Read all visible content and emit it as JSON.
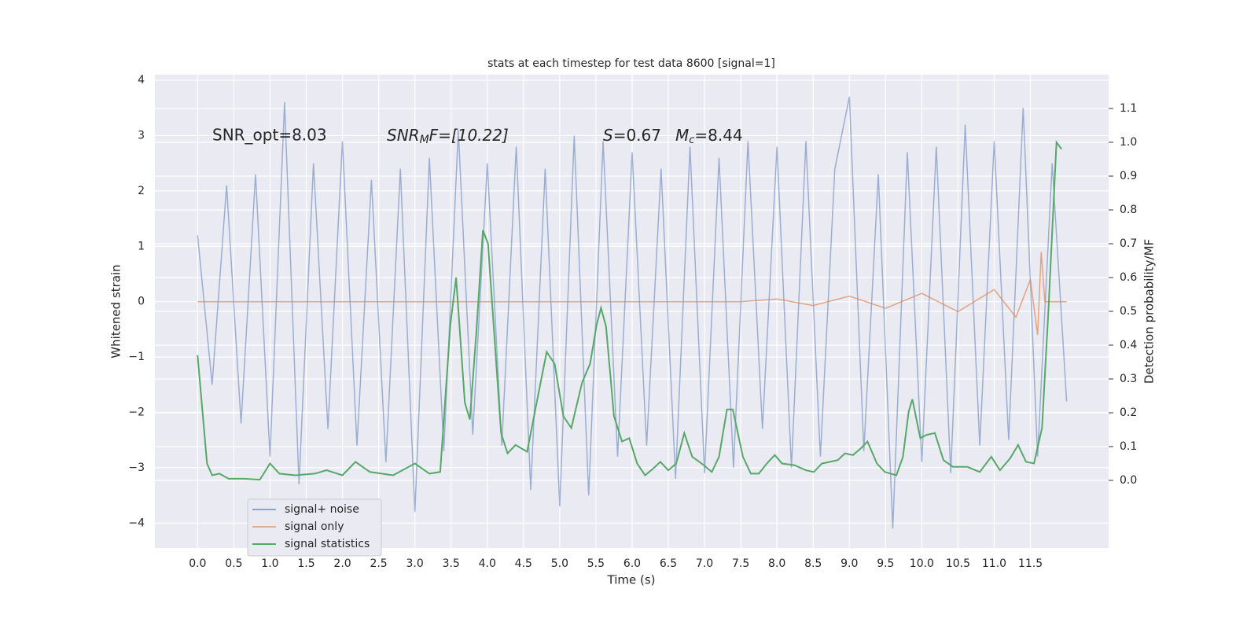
{
  "chart_data": {
    "type": "line",
    "title": "stats at each timestep for test data 8600 [signal=1]",
    "xlabel": "Time (s)",
    "ylabel": "Whitened strain",
    "y2label": "Detection probability/MF",
    "annotations": {
      "snr_opt": "SNR_opt=8.03",
      "snr_mf": [
        "SNR",
        "M",
        "F=[10.22]"
      ],
      "s": "S",
      "s_val": "=0.67",
      "mc": [
        "M",
        "c",
        "=8.44"
      ]
    },
    "xlim": [
      -0.59,
      12.58
    ],
    "ylim": [
      -4.45,
      4.1
    ],
    "y2lim": [
      -0.2,
      1.2
    ],
    "xticks": [
      {
        "value": 0,
        "label": "0.0"
      },
      0.5,
      {
        "value": 1,
        "label": "1.0"
      },
      1.5,
      {
        "value": 2,
        "label": "2.0"
      },
      2.5,
      {
        "value": 3,
        "label": "3.0"
      },
      3.5,
      {
        "value": 4,
        "label": "4.0"
      },
      4.5,
      {
        "value": 5,
        "label": "5.0"
      },
      5.5,
      {
        "value": 6,
        "label": "6.0"
      },
      6.5,
      {
        "value": 7,
        "label": "7.0"
      },
      7.5,
      {
        "value": 8,
        "label": "8.0"
      },
      8.5,
      {
        "value": 9,
        "label": "9.0"
      },
      9.5,
      {
        "value": 10,
        "label": "10.0"
      },
      10.5,
      {
        "value": 11,
        "label": "11.0"
      },
      11.5
    ],
    "yticks": [
      {
        "value": -4,
        "label": "−4"
      },
      {
        "value": -3,
        "label": "−3"
      },
      {
        "value": -2,
        "label": "−2"
      },
      {
        "value": -1,
        "label": "−1"
      },
      0,
      1,
      2,
      3,
      4
    ],
    "y2ticks": [
      {
        "value": 0,
        "label": "0.0"
      },
      0.1,
      0.2,
      0.3,
      0.4,
      0.5,
      0.6,
      0.7,
      0.8,
      0.9,
      {
        "value": 1,
        "label": "1.0"
      },
      1.1
    ],
    "grid": true,
    "legend": "lower left",
    "series": [
      {
        "name": "signal+ noise",
        "color": "#4c72b0",
        "axis": "y",
        "x": [
          0,
          0.2,
          0.4,
          0.6,
          0.8,
          1,
          1.2,
          1.4,
          1.6,
          1.8,
          2,
          2.2,
          2.4,
          2.6,
          2.8,
          3,
          3.2,
          3.4,
          3.6,
          3.8,
          4,
          4.2,
          4.4,
          4.6,
          4.8,
          5,
          5.2,
          5.4,
          5.6,
          5.8,
          6,
          6.2,
          6.4,
          6.6,
          6.8,
          7,
          7.2,
          7.4,
          7.6,
          7.8,
          8,
          8.2,
          8.4,
          8.6,
          8.8,
          9,
          9.2,
          9.4,
          9.6,
          9.8,
          10,
          10.2,
          10.4,
          10.6,
          10.8,
          11,
          11.2,
          11.4,
          11.6,
          11.8,
          12
        ],
        "values": [
          1.2,
          -1.5,
          2.1,
          -2.2,
          2.3,
          -2.8,
          3.6,
          -3.3,
          2.5,
          -2.3,
          2.9,
          -2.6,
          2.2,
          -2.9,
          2.4,
          -3.8,
          2.6,
          -2.7,
          3.1,
          -2.4,
          2.5,
          -2.6,
          2.8,
          -3.4,
          2.4,
          -3.7,
          3,
          -3.5,
          2.9,
          -2.8,
          2.7,
          -2.6,
          2.4,
          -3.2,
          2.8,
          -3.1,
          2.6,
          -3,
          2.9,
          -2.3,
          2.8,
          -3,
          2.9,
          -2.8,
          2.4,
          3.7,
          -2.7,
          2.3,
          -4.1,
          2.7,
          -2.9,
          2.8,
          -3.1,
          3.2,
          -2.6,
          2.9,
          -2.5,
          3.5,
          -2.8,
          2.5,
          -1.8
        ]
      },
      {
        "name": "signal only",
        "color": "#dd8452",
        "axis": "y",
        "x": [
          0,
          7.5,
          8,
          8.5,
          9,
          9.5,
          10,
          10.5,
          11,
          11.3,
          11.5,
          11.6,
          11.65,
          11.7,
          12
        ],
        "values": [
          0,
          0,
          0.05,
          -0.07,
          0.1,
          -0.12,
          0.15,
          -0.18,
          0.22,
          -0.28,
          0.4,
          -0.6,
          0.9,
          0,
          0
        ]
      },
      {
        "name": "signal statistics",
        "color": "#55a868",
        "axis": "y2",
        "x": [
          0,
          0.13,
          0.2,
          0.3,
          0.43,
          0.64,
          0.86,
          1,
          1.13,
          1.35,
          1.62,
          1.78,
          2,
          2.18,
          2.38,
          2.7,
          3,
          3.2,
          3.35,
          3.49,
          3.57,
          3.69,
          3.76,
          3.85,
          3.94,
          4.01,
          4.19,
          4.28,
          4.39,
          4.55,
          4.71,
          4.82,
          4.93,
          5.05,
          5.16,
          5.31,
          5.42,
          5.51,
          5.57,
          5.64,
          5.75,
          5.86,
          5.96,
          6.07,
          6.18,
          6.29,
          6.39,
          6.5,
          6.61,
          6.72,
          6.83,
          6.99,
          7.1,
          7.2,
          7.31,
          7.39,
          7.53,
          7.64,
          7.75,
          7.86,
          7.97,
          8.07,
          8.24,
          8.4,
          8.51,
          8.62,
          8.73,
          8.84,
          8.94,
          9.05,
          9.16,
          9.25,
          9.38,
          9.49,
          9.65,
          9.74,
          9.82,
          9.87,
          9.98,
          10.07,
          10.18,
          10.3,
          10.43,
          10.63,
          10.8,
          10.96,
          11.08,
          11.22,
          11.33,
          11.44,
          11.55,
          11.66,
          11.75,
          11.86,
          11.93
        ],
        "values": [
          0.37,
          0.05,
          0.015,
          0.02,
          0.005,
          0.005,
          0.002,
          0.05,
          0.02,
          0.015,
          0.02,
          0.03,
          0.015,
          0.055,
          0.025,
          0.015,
          0.05,
          0.02,
          0.025,
          0.46,
          0.6,
          0.23,
          0.18,
          0.44,
          0.74,
          0.7,
          0.14,
          0.08,
          0.105,
          0.085,
          0.26,
          0.38,
          0.345,
          0.19,
          0.155,
          0.29,
          0.345,
          0.46,
          0.51,
          0.455,
          0.19,
          0.115,
          0.125,
          0.05,
          0.015,
          0.035,
          0.055,
          0.03,
          0.05,
          0.14,
          0.07,
          0.045,
          0.025,
          0.07,
          0.21,
          0.21,
          0.07,
          0.02,
          0.02,
          0.05,
          0.075,
          0.05,
          0.045,
          0.03,
          0.025,
          0.05,
          0.055,
          0.06,
          0.08,
          0.075,
          0.095,
          0.115,
          0.05,
          0.025,
          0.015,
          0.07,
          0.205,
          0.24,
          0.125,
          0.135,
          0.14,
          0.06,
          0.04,
          0.04,
          0.025,
          0.07,
          0.03,
          0.065,
          0.105,
          0.055,
          0.05,
          0.155,
          0.51,
          1,
          0.98
        ]
      }
    ]
  }
}
